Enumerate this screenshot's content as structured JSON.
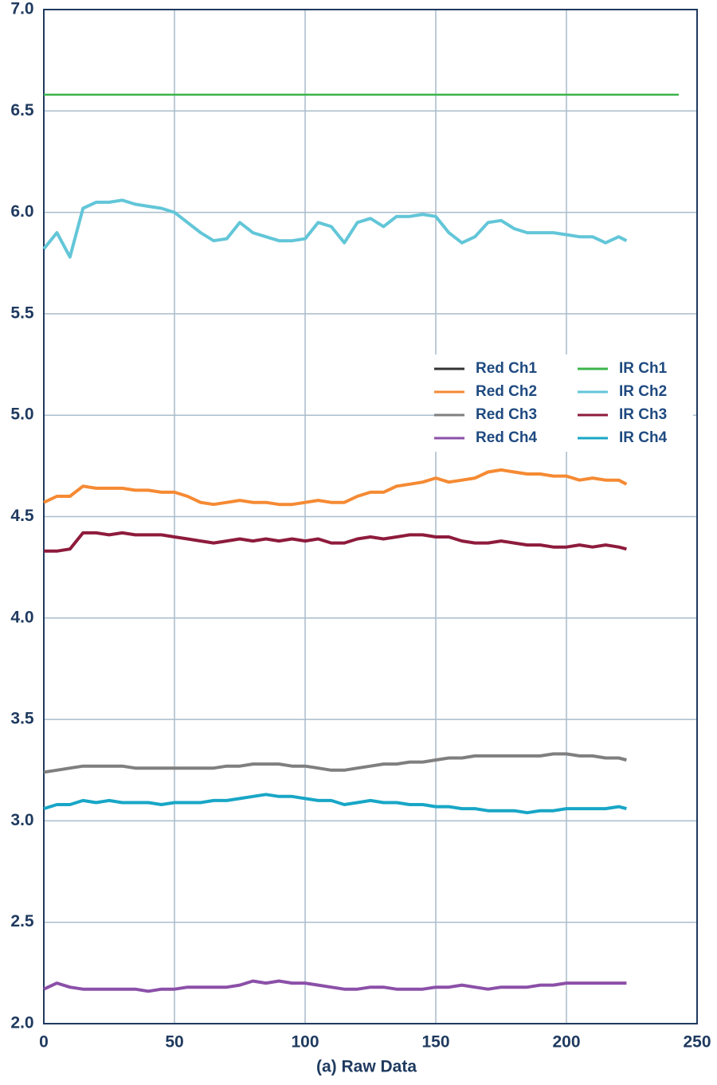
{
  "chart_data": {
    "type": "line",
    "x_label": "(a) Raw Data",
    "x": [
      0,
      5,
      10,
      15,
      20,
      25,
      30,
      35,
      40,
      45,
      50,
      55,
      60,
      65,
      70,
      75,
      80,
      85,
      90,
      95,
      100,
      105,
      110,
      115,
      120,
      125,
      130,
      135,
      140,
      145,
      150,
      155,
      160,
      165,
      170,
      175,
      180,
      185,
      190,
      195,
      200,
      205,
      210,
      215,
      220,
      223,
      243
    ],
    "series": [
      {
        "name": "Red Ch1",
        "color": "#333333",
        "values": [
          null,
          null,
          null,
          null,
          null,
          null,
          null,
          null,
          null,
          null,
          null,
          null,
          null,
          null,
          null,
          null,
          null,
          null,
          null,
          null,
          null,
          null,
          null,
          null,
          null,
          null,
          null,
          null,
          null,
          null,
          null,
          null,
          null,
          null,
          null,
          null,
          null,
          null,
          null,
          null,
          null,
          null,
          null,
          null,
          null,
          null,
          null
        ]
      },
      {
        "name": "Red Ch2",
        "color": "#f58a33",
        "values": [
          4.57,
          4.6,
          4.6,
          4.65,
          4.64,
          4.64,
          4.64,
          4.63,
          4.63,
          4.62,
          4.62,
          4.6,
          4.57,
          4.56,
          4.57,
          4.58,
          4.57,
          4.57,
          4.56,
          4.56,
          4.57,
          4.58,
          4.57,
          4.57,
          4.6,
          4.62,
          4.62,
          4.65,
          4.66,
          4.67,
          4.69,
          4.67,
          4.68,
          4.69,
          4.72,
          4.73,
          4.72,
          4.71,
          4.71,
          4.7,
          4.7,
          4.68,
          4.69,
          4.68,
          4.68,
          4.66,
          null
        ]
      },
      {
        "name": "Red Ch3",
        "color": "#7f7f7f",
        "values": [
          3.24,
          3.25,
          3.26,
          3.27,
          3.27,
          3.27,
          3.27,
          3.26,
          3.26,
          3.26,
          3.26,
          3.26,
          3.26,
          3.26,
          3.27,
          3.27,
          3.28,
          3.28,
          3.28,
          3.27,
          3.27,
          3.26,
          3.25,
          3.25,
          3.26,
          3.27,
          3.28,
          3.28,
          3.29,
          3.29,
          3.3,
          3.31,
          3.31,
          3.32,
          3.32,
          3.32,
          3.32,
          3.32,
          3.32,
          3.33,
          3.33,
          3.32,
          3.32,
          3.31,
          3.31,
          3.3,
          null
        ]
      },
      {
        "name": "Red Ch4",
        "color": "#8b50a8",
        "values": [
          2.17,
          2.2,
          2.18,
          2.17,
          2.17,
          2.17,
          2.17,
          2.17,
          2.16,
          2.17,
          2.17,
          2.18,
          2.18,
          2.18,
          2.18,
          2.19,
          2.21,
          2.2,
          2.21,
          2.2,
          2.2,
          2.19,
          2.18,
          2.17,
          2.17,
          2.18,
          2.18,
          2.17,
          2.17,
          2.17,
          2.18,
          2.18,
          2.19,
          2.18,
          2.17,
          2.18,
          2.18,
          2.18,
          2.19,
          2.19,
          2.2,
          2.2,
          2.2,
          2.2,
          2.2,
          2.2,
          null
        ]
      },
      {
        "name": "IR Ch1",
        "color": "#3cb44b",
        "values": [
          6.58,
          6.58,
          6.58,
          6.58,
          6.58,
          6.58,
          6.58,
          6.58,
          6.58,
          6.58,
          6.58,
          6.58,
          6.58,
          6.58,
          6.58,
          6.58,
          6.58,
          6.58,
          6.58,
          6.58,
          6.58,
          6.58,
          6.58,
          6.58,
          6.58,
          6.58,
          6.58,
          6.58,
          6.58,
          6.58,
          6.58,
          6.58,
          6.58,
          6.58,
          6.58,
          6.58,
          6.58,
          6.58,
          6.58,
          6.58,
          6.58,
          6.58,
          6.58,
          6.58,
          6.58,
          6.58,
          6.58
        ]
      },
      {
        "name": "IR Ch2",
        "color": "#62c6d8",
        "values": [
          5.82,
          5.9,
          5.78,
          6.02,
          6.05,
          6.05,
          6.06,
          6.04,
          6.03,
          6.02,
          6.0,
          5.95,
          5.9,
          5.86,
          5.87,
          5.95,
          5.9,
          5.88,
          5.86,
          5.86,
          5.87,
          5.95,
          5.93,
          5.85,
          5.95,
          5.97,
          5.93,
          5.98,
          5.98,
          5.99,
          5.98,
          5.9,
          5.85,
          5.88,
          5.95,
          5.96,
          5.92,
          5.9,
          5.9,
          5.9,
          5.89,
          5.88,
          5.88,
          5.85,
          5.88,
          5.86,
          null
        ]
      },
      {
        "name": "IR Ch3",
        "color": "#8e1b3c",
        "values": [
          4.33,
          4.33,
          4.34,
          4.42,
          4.42,
          4.41,
          4.42,
          4.41,
          4.41,
          4.41,
          4.4,
          4.39,
          4.38,
          4.37,
          4.38,
          4.39,
          4.38,
          4.39,
          4.38,
          4.39,
          4.38,
          4.39,
          4.37,
          4.37,
          4.39,
          4.4,
          4.39,
          4.4,
          4.41,
          4.41,
          4.4,
          4.4,
          4.38,
          4.37,
          4.37,
          4.38,
          4.37,
          4.36,
          4.36,
          4.35,
          4.35,
          4.36,
          4.35,
          4.36,
          4.35,
          4.34,
          null
        ]
      },
      {
        "name": "IR Ch4",
        "color": "#18a6c6",
        "values": [
          3.06,
          3.08,
          3.08,
          3.1,
          3.09,
          3.1,
          3.09,
          3.09,
          3.09,
          3.08,
          3.09,
          3.09,
          3.09,
          3.1,
          3.1,
          3.11,
          3.12,
          3.13,
          3.12,
          3.12,
          3.11,
          3.1,
          3.1,
          3.08,
          3.09,
          3.1,
          3.09,
          3.09,
          3.08,
          3.08,
          3.07,
          3.07,
          3.06,
          3.06,
          3.05,
          3.05,
          3.05,
          3.04,
          3.05,
          3.05,
          3.06,
          3.06,
          3.06,
          3.06,
          3.07,
          3.06,
          null
        ]
      }
    ],
    "xlim": [
      0,
      250
    ],
    "xticks": [
      0,
      50,
      100,
      150,
      200,
      250
    ],
    "ylim": [
      2,
      7
    ],
    "yticks": [
      {
        "value": 2,
        "label": "2.0"
      },
      2.5,
      {
        "value": 3,
        "label": "3.0"
      },
      3.5,
      {
        "value": 4,
        "label": "4.0"
      },
      4.5,
      {
        "value": 5,
        "label": "5.0"
      },
      5.5,
      {
        "value": 6,
        "label": "6.0"
      },
      6.5,
      {
        "value": 7,
        "label": "7.0"
      }
    ],
    "grid": true,
    "legend": "center-right"
  }
}
